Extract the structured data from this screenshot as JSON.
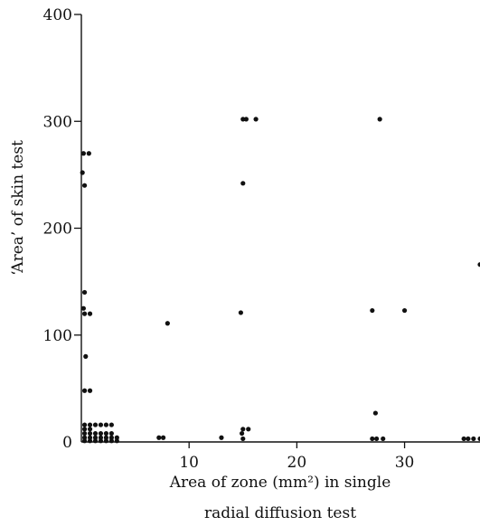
{
  "chart_data": {
    "type": "scatter",
    "title": "",
    "xlabel_lines": [
      "Area of zone (mm²) in single",
      "radial diffusion test"
    ],
    "ylabel": "‘Area’ of skin test",
    "xlim": [
      0,
      37
    ],
    "ylim": [
      0,
      400
    ],
    "x_ticks": [
      10,
      20,
      30
    ],
    "y_ticks": [
      0,
      100,
      200,
      300,
      400
    ],
    "x_tick_labels": [
      "10",
      "20",
      "30"
    ],
    "y_tick_labels": [
      "0",
      "100",
      "200",
      "300",
      "400"
    ],
    "grid": false,
    "legend": "none",
    "marker_color": "#111111",
    "points": [
      {
        "x": 0.2,
        "y": 270
      },
      {
        "x": 0.7,
        "y": 270
      },
      {
        "x": 0.1,
        "y": 252
      },
      {
        "x": 0.3,
        "y": 240
      },
      {
        "x": 0.3,
        "y": 140
      },
      {
        "x": 0.2,
        "y": 125
      },
      {
        "x": 0.3,
        "y": 120
      },
      {
        "x": 0.8,
        "y": 120
      },
      {
        "x": 0.4,
        "y": 80
      },
      {
        "x": 0.3,
        "y": 48
      },
      {
        "x": 0.8,
        "y": 48
      },
      {
        "x": 0.3,
        "y": 16
      },
      {
        "x": 0.8,
        "y": 16
      },
      {
        "x": 1.3,
        "y": 16
      },
      {
        "x": 1.8,
        "y": 16
      },
      {
        "x": 2.3,
        "y": 16
      },
      {
        "x": 2.8,
        "y": 16
      },
      {
        "x": 0.3,
        "y": 12
      },
      {
        "x": 0.8,
        "y": 12
      },
      {
        "x": 0.3,
        "y": 8
      },
      {
        "x": 0.8,
        "y": 8
      },
      {
        "x": 1.3,
        "y": 8
      },
      {
        "x": 1.8,
        "y": 8
      },
      {
        "x": 2.3,
        "y": 8
      },
      {
        "x": 2.8,
        "y": 8
      },
      {
        "x": 0.3,
        "y": 4
      },
      {
        "x": 0.8,
        "y": 4
      },
      {
        "x": 1.3,
        "y": 4
      },
      {
        "x": 1.8,
        "y": 4
      },
      {
        "x": 2.3,
        "y": 4
      },
      {
        "x": 2.8,
        "y": 4
      },
      {
        "x": 3.3,
        "y": 4
      },
      {
        "x": 0.3,
        "y": 1
      },
      {
        "x": 0.8,
        "y": 1
      },
      {
        "x": 1.3,
        "y": 1
      },
      {
        "x": 1.8,
        "y": 1
      },
      {
        "x": 2.3,
        "y": 1
      },
      {
        "x": 2.8,
        "y": 1
      },
      {
        "x": 3.3,
        "y": 1
      },
      {
        "x": 7.2,
        "y": 4
      },
      {
        "x": 7.6,
        "y": 4
      },
      {
        "x": 8.0,
        "y": 111
      },
      {
        "x": 13.0,
        "y": 4
      },
      {
        "x": 15.0,
        "y": 302
      },
      {
        "x": 15.0,
        "y": 242
      },
      {
        "x": 14.8,
        "y": 121
      },
      {
        "x": 15.3,
        "y": 302
      },
      {
        "x": 16.2,
        "y": 302
      },
      {
        "x": 15.0,
        "y": 12
      },
      {
        "x": 15.5,
        "y": 12
      },
      {
        "x": 14.9,
        "y": 8
      },
      {
        "x": 15.0,
        "y": 3
      },
      {
        "x": 27.7,
        "y": 302
      },
      {
        "x": 27.0,
        "y": 123
      },
      {
        "x": 30.0,
        "y": 123
      },
      {
        "x": 27.3,
        "y": 27
      },
      {
        "x": 27.0,
        "y": 3
      },
      {
        "x": 27.4,
        "y": 3
      },
      {
        "x": 28.0,
        "y": 3
      },
      {
        "x": 35.5,
        "y": 3
      },
      {
        "x": 35.9,
        "y": 3
      },
      {
        "x": 36.4,
        "y": 3
      },
      {
        "x": 37.0,
        "y": 3
      },
      {
        "x": 37.0,
        "y": 166
      }
    ]
  }
}
